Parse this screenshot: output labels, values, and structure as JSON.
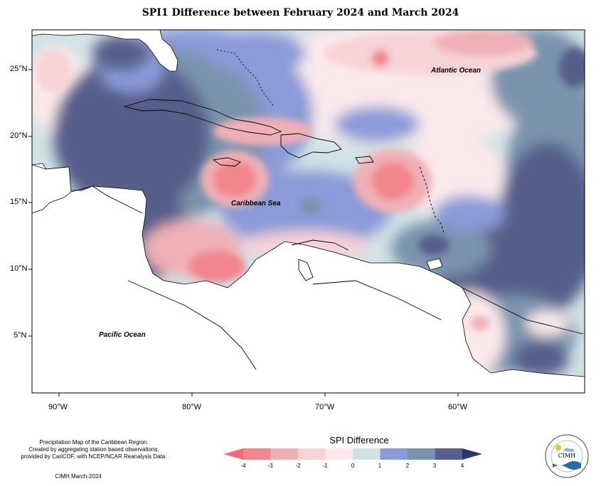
{
  "title": "SPI1 Difference between February 2024 and March 2024",
  "map": {
    "lat_ticks": [
      "25°N",
      "20°N",
      "15°N",
      "10°N",
      "5°N"
    ],
    "lon_ticks": [
      "90°W",
      "80°W",
      "70°W",
      "60°W"
    ],
    "place_labels": {
      "atlantic": "Atlantic Ocean",
      "caribbean": "Caribbean Sea",
      "pacific": "Pacific Ocean"
    }
  },
  "legend": {
    "title": "SPI Difference",
    "tick_labels": [
      "-4",
      "-3",
      "-2",
      "-1",
      "0",
      "1",
      "2",
      "3",
      "4"
    ],
    "colors": [
      "#f2858d",
      "#efb0b6",
      "#f7d2d6",
      "#fbe9eb",
      "#d1e2e6",
      "#8b9ad8",
      "#7a93ad",
      "#575f8a"
    ],
    "arrow_low": "#f36a79",
    "arrow_high": "#2f3469"
  },
  "credits": {
    "line1": "Precipitation Map of the Caribbean Region.",
    "line2": "Created by aggregating station based observations,",
    "line3": "provided by CariCOF, with NCEP/NCAR Reanalysis Data.",
    "footer": "CIMH March-2024",
    "logo_text": "CIMH"
  }
}
